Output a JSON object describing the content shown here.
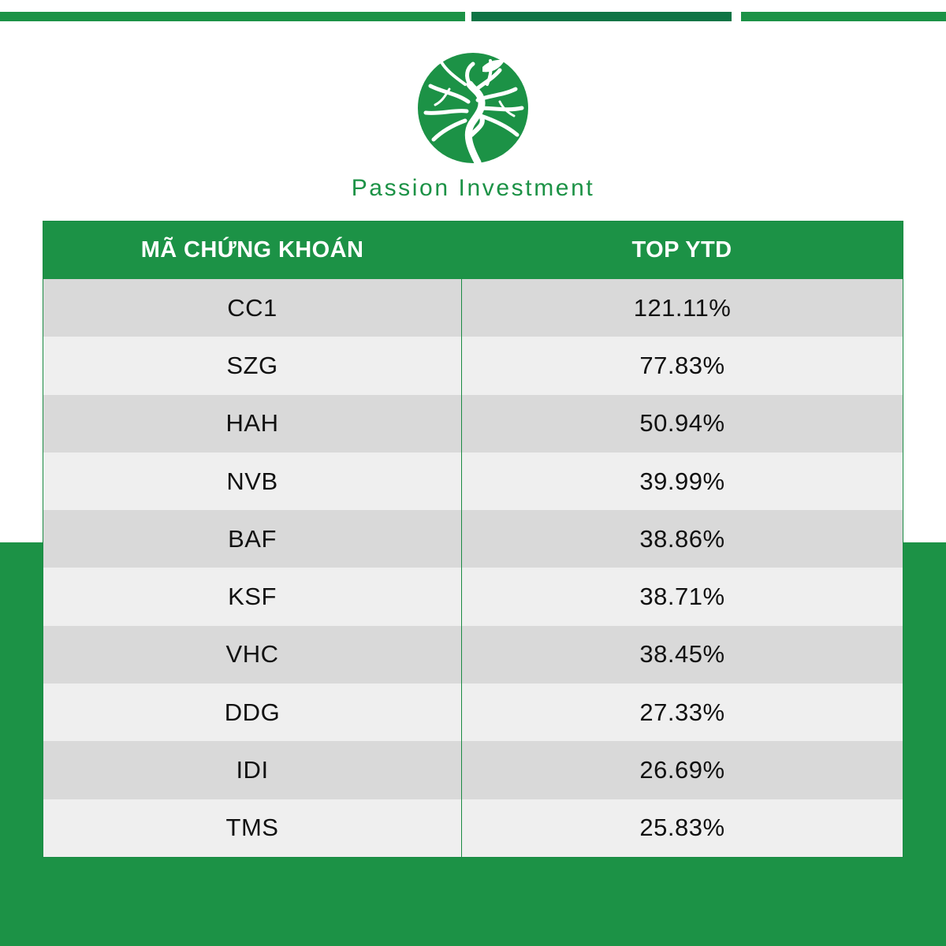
{
  "brand": {
    "name": "Passion Investment",
    "logo": "tree-in-circle-logo",
    "colors": {
      "primary_green": "#1c9246",
      "dark_green": "#0f7445",
      "row_dark": "#d9d9d9",
      "row_light": "#efefef"
    }
  },
  "chart_data": {
    "type": "table",
    "columns": [
      "MÃ CHỨNG KHOÁN",
      "TOP YTD"
    ],
    "rows": [
      [
        "CC1",
        "121.11%"
      ],
      [
        "SZG",
        "77.83%"
      ],
      [
        "HAH",
        "50.94%"
      ],
      [
        "NVB",
        "39.99%"
      ],
      [
        "BAF",
        "38.86%"
      ],
      [
        "KSF",
        "38.71%"
      ],
      [
        "VHC",
        "38.45%"
      ],
      [
        "DDG",
        "27.33%"
      ],
      [
        "IDI",
        "26.69%"
      ],
      [
        "TMS",
        "25.83%"
      ]
    ]
  }
}
